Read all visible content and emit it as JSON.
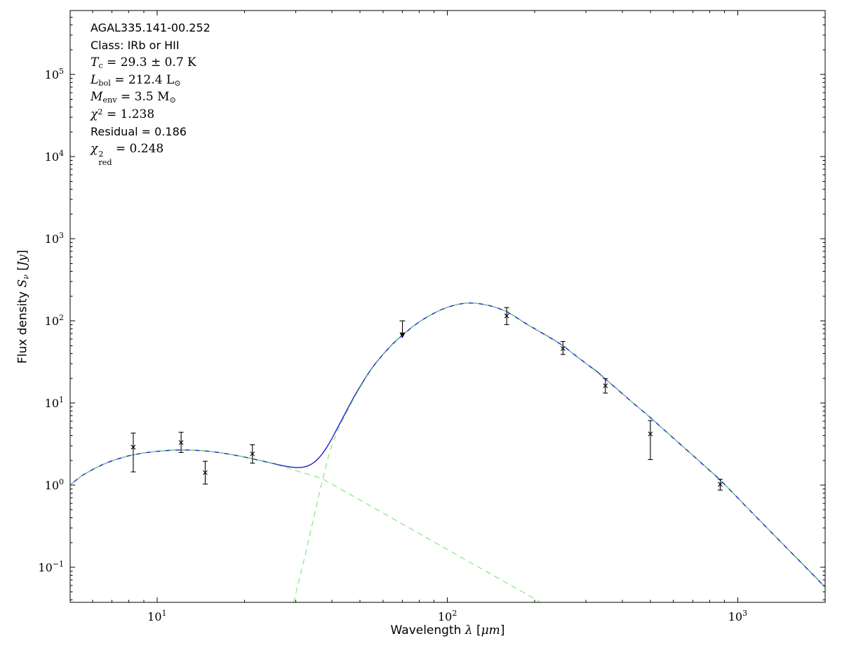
{
  "figure": {
    "annotation": {
      "source": "AGAL335.141-00.252",
      "class": "Class: IRb or HII",
      "tc": {
        "sym": "T",
        "sub": "c",
        "rest": " = 29.3 ± 0.7 K"
      },
      "lbol": {
        "sym": "L",
        "sub": "bol",
        "eq": " = 212.4 ",
        "unit": "L",
        "unit_sub": "⊙"
      },
      "menv": {
        "sym": "M",
        "sub": "env",
        "eq": " = 3.5 ",
        "unit": "M",
        "unit_sub": "⊙"
      },
      "chi2": {
        "sym": "χ",
        "sup": "2",
        "rest": " = 1.238"
      },
      "residual": "Residual = 0.186",
      "chi2red": {
        "sym": "χ",
        "sup": "2",
        "sub": "red",
        "rest": " = 0.248"
      }
    },
    "axis_labels": {
      "x": {
        "word": "Wavelength ",
        "sym": "λ",
        "b1": " [",
        "mu": "μm",
        "b2": "]"
      },
      "y": {
        "word": "Flux density ",
        "sym": "S",
        "sub": "ν",
        "b1": " [",
        "unit": "Jy",
        "b2": "]"
      }
    }
  },
  "chart_data": {
    "type": "line",
    "title": "",
    "xlabel": "Wavelength λ [μm]",
    "ylabel": "Flux density S_ν [Jy]",
    "x_axis": {
      "scale": "log",
      "lim": [
        5.02,
        2000
      ],
      "tick_exponents": [
        1,
        2,
        3
      ]
    },
    "y_axis": {
      "scale": "log",
      "lim": [
        0.0374,
        600000
      ],
      "tick_exponents": [
        -1,
        0,
        1,
        2,
        3,
        4,
        5
      ]
    },
    "grid": false,
    "legend": "none",
    "series": [
      {
        "name": "total-model-fit",
        "color": "#1d1dce",
        "line": "solid",
        "width": 1.4,
        "points": [
          [
            5.0,
            1.0
          ],
          [
            5.5,
            1.3
          ],
          [
            6,
            1.55
          ],
          [
            6.5,
            1.78
          ],
          [
            7,
            1.98
          ],
          [
            7.5,
            2.14
          ],
          [
            8,
            2.28
          ],
          [
            9,
            2.47
          ],
          [
            10,
            2.58
          ],
          [
            11,
            2.65
          ],
          [
            12,
            2.68
          ],
          [
            13,
            2.67
          ],
          [
            14,
            2.64
          ],
          [
            15,
            2.59
          ],
          [
            16,
            2.52
          ],
          [
            17,
            2.44
          ],
          [
            18,
            2.36
          ],
          [
            19,
            2.28
          ],
          [
            20,
            2.2
          ],
          [
            21,
            2.12
          ],
          [
            22,
            2.04
          ],
          [
            23,
            1.97
          ],
          [
            24,
            1.9
          ],
          [
            25,
            1.84
          ],
          [
            26,
            1.78
          ],
          [
            27,
            1.73
          ],
          [
            28,
            1.69
          ],
          [
            29,
            1.66
          ],
          [
            30,
            1.64
          ],
          [
            31,
            1.64
          ],
          [
            32,
            1.66
          ],
          [
            33,
            1.71
          ],
          [
            34,
            1.8
          ],
          [
            35,
            1.93
          ],
          [
            36,
            2.12
          ],
          [
            37,
            2.38
          ],
          [
            38,
            2.72
          ],
          [
            39,
            3.15
          ],
          [
            40,
            3.68
          ],
          [
            42,
            5.1
          ],
          [
            44,
            7.0
          ],
          [
            46,
            9.4
          ],
          [
            48,
            12.4
          ],
          [
            50,
            15.8
          ],
          [
            53,
            22
          ],
          [
            56,
            29
          ],
          [
            60,
            39
          ],
          [
            65,
            53
          ],
          [
            70,
            67
          ],
          [
            75,
            82
          ],
          [
            80,
            97
          ],
          [
            85,
            111
          ],
          [
            90,
            124
          ],
          [
            95,
            136
          ],
          [
            100,
            146
          ],
          [
            105,
            154
          ],
          [
            110,
            160
          ],
          [
            115,
            164
          ],
          [
            120,
            165
          ],
          [
            125,
            164
          ],
          [
            130,
            161
          ],
          [
            140,
            153
          ],
          [
            150,
            142
          ],
          [
            160,
            130
          ],
          [
            170,
            114
          ],
          [
            180,
            100
          ],
          [
            190,
            89
          ],
          [
            200,
            80
          ],
          [
            215,
            69
          ],
          [
            230,
            60
          ],
          [
            250,
            50
          ],
          [
            270,
            40.3
          ],
          [
            290,
            33.2
          ],
          [
            310,
            27.8
          ],
          [
            330,
            23.6
          ],
          [
            350,
            19.5
          ],
          [
            375,
            15.9
          ],
          [
            400,
            13.0
          ],
          [
            425,
            10.8
          ],
          [
            450,
            9.1
          ],
          [
            475,
            7.75
          ],
          [
            500,
            6.65
          ],
          [
            550,
            4.92
          ],
          [
            600,
            3.74
          ],
          [
            650,
            2.91
          ],
          [
            700,
            2.31
          ],
          [
            750,
            1.85
          ],
          [
            800,
            1.51
          ],
          [
            870,
            1.16
          ],
          [
            1000,
            0.7
          ],
          [
            1150,
            0.42
          ],
          [
            1300,
            0.27
          ],
          [
            1500,
            0.161
          ],
          [
            1700,
            0.103
          ],
          [
            1850,
            0.076
          ],
          [
            2000,
            0.057
          ]
        ]
      },
      {
        "name": "cold-greybody-component",
        "color": "#80e880",
        "line": "dashed",
        "width": 1.2,
        "points": [
          [
            29.5,
            0.037
          ],
          [
            30,
            0.047
          ],
          [
            31,
            0.075
          ],
          [
            32,
            0.12
          ],
          [
            33,
            0.19
          ],
          [
            34,
            0.3
          ],
          [
            35,
            0.47
          ],
          [
            36,
            0.73
          ],
          [
            37,
            1.1
          ],
          [
            38,
            1.6
          ],
          [
            39,
            2.28
          ],
          [
            40,
            3.05
          ],
          [
            42,
            4.7
          ],
          [
            44,
            6.6
          ],
          [
            46,
            8.95
          ],
          [
            48,
            11.9
          ],
          [
            50,
            15.3
          ],
          [
            53,
            21.5
          ],
          [
            56,
            28.5
          ],
          [
            60,
            38.5
          ],
          [
            65,
            52.5
          ],
          [
            70,
            66.5
          ],
          [
            75,
            81.5
          ],
          [
            80,
            96.5
          ],
          [
            85,
            110.5
          ],
          [
            90,
            123.5
          ],
          [
            95,
            135.5
          ],
          [
            100,
            145.5
          ],
          [
            105,
            153.5
          ],
          [
            110,
            159.5
          ],
          [
            115,
            163.5
          ],
          [
            120,
            164.6
          ],
          [
            125,
            163.6
          ],
          [
            130,
            160.7
          ],
          [
            140,
            152.7
          ],
          [
            150,
            141.8
          ],
          [
            160,
            129.9
          ],
          [
            180,
            99.9
          ],
          [
            200,
            79.9
          ],
          [
            250,
            49.9
          ],
          [
            300,
            30.5
          ],
          [
            350,
            19.4
          ],
          [
            400,
            12.95
          ],
          [
            500,
            6.62
          ],
          [
            600,
            3.72
          ],
          [
            700,
            2.3
          ],
          [
            800,
            1.5
          ],
          [
            870,
            1.155
          ],
          [
            1000,
            0.697
          ],
          [
            1300,
            0.268
          ],
          [
            1600,
            0.127
          ],
          [
            2000,
            0.0567
          ]
        ]
      },
      {
        "name": "hot-blackbody-component",
        "color": "#80e880",
        "line": "dashed",
        "width": 1.2,
        "points": [
          [
            5,
            1.0
          ],
          [
            5.5,
            1.3
          ],
          [
            6,
            1.55
          ],
          [
            6.5,
            1.78
          ],
          [
            7,
            1.98
          ],
          [
            7.5,
            2.14
          ],
          [
            8,
            2.28
          ],
          [
            9,
            2.47
          ],
          [
            10,
            2.58
          ],
          [
            11,
            2.65
          ],
          [
            12,
            2.68
          ],
          [
            13,
            2.67
          ],
          [
            14,
            2.64
          ],
          [
            15,
            2.59
          ],
          [
            16,
            2.52
          ],
          [
            17,
            2.44
          ],
          [
            18,
            2.36
          ],
          [
            19,
            2.28
          ],
          [
            20,
            2.2
          ],
          [
            21,
            2.12
          ],
          [
            22,
            2.04
          ],
          [
            23,
            1.96
          ],
          [
            24,
            1.89
          ],
          [
            25,
            1.82
          ],
          [
            26,
            1.75
          ],
          [
            27,
            1.68
          ],
          [
            28,
            1.62
          ],
          [
            29,
            1.56
          ],
          [
            30,
            1.5
          ],
          [
            31,
            1.455
          ],
          [
            32,
            1.41
          ],
          [
            33,
            1.365
          ],
          [
            34,
            1.32
          ],
          [
            35,
            1.28
          ],
          [
            36,
            1.24
          ],
          [
            37,
            1.2
          ],
          [
            40,
            1.03
          ],
          [
            44,
            0.85
          ],
          [
            48,
            0.715
          ],
          [
            52,
            0.61
          ],
          [
            57,
            0.505
          ],
          [
            62,
            0.43
          ],
          [
            68,
            0.355
          ],
          [
            75,
            0.293
          ],
          [
            82,
            0.245
          ],
          [
            90,
            0.203
          ],
          [
            100,
            0.165
          ],
          [
            110,
            0.136
          ],
          [
            120,
            0.114
          ],
          [
            135,
            0.0905
          ],
          [
            150,
            0.073
          ],
          [
            165,
            0.0605
          ],
          [
            180,
            0.0508
          ],
          [
            195,
            0.0433
          ],
          [
            210,
            0.037
          ]
        ]
      }
    ],
    "measurements": {
      "marker": "x",
      "color": "#000000",
      "points": [
        {
          "wavelength": 8.28,
          "flux": 2.9,
          "err_lo": 1.45,
          "err_hi": 4.3
        },
        {
          "wavelength": 12.1,
          "flux": 3.3,
          "err_lo": 2.5,
          "err_hi": 4.4
        },
        {
          "wavelength": 14.65,
          "flux": 1.42,
          "err_lo": 1.03,
          "err_hi": 1.95
        },
        {
          "wavelength": 21.3,
          "flux": 2.4,
          "err_lo": 1.85,
          "err_hi": 3.1
        },
        {
          "wavelength": 160,
          "flux": 115,
          "err_lo": 90,
          "err_hi": 145
        },
        {
          "wavelength": 250,
          "flux": 46,
          "err_lo": 39,
          "err_hi": 56
        },
        {
          "wavelength": 350,
          "flux": 16.2,
          "err_lo": 13.2,
          "err_hi": 19.8
        },
        {
          "wavelength": 500,
          "flux": 4.2,
          "err_lo": 2.05,
          "err_hi": 6.1
        },
        {
          "wavelength": 870,
          "flux": 1.02,
          "err_lo": 0.87,
          "err_hi": 1.18
        }
      ]
    },
    "upper_limit": {
      "wavelength": 70,
      "flux": 100,
      "arrow_to": 72,
      "color": "#000000"
    }
  }
}
